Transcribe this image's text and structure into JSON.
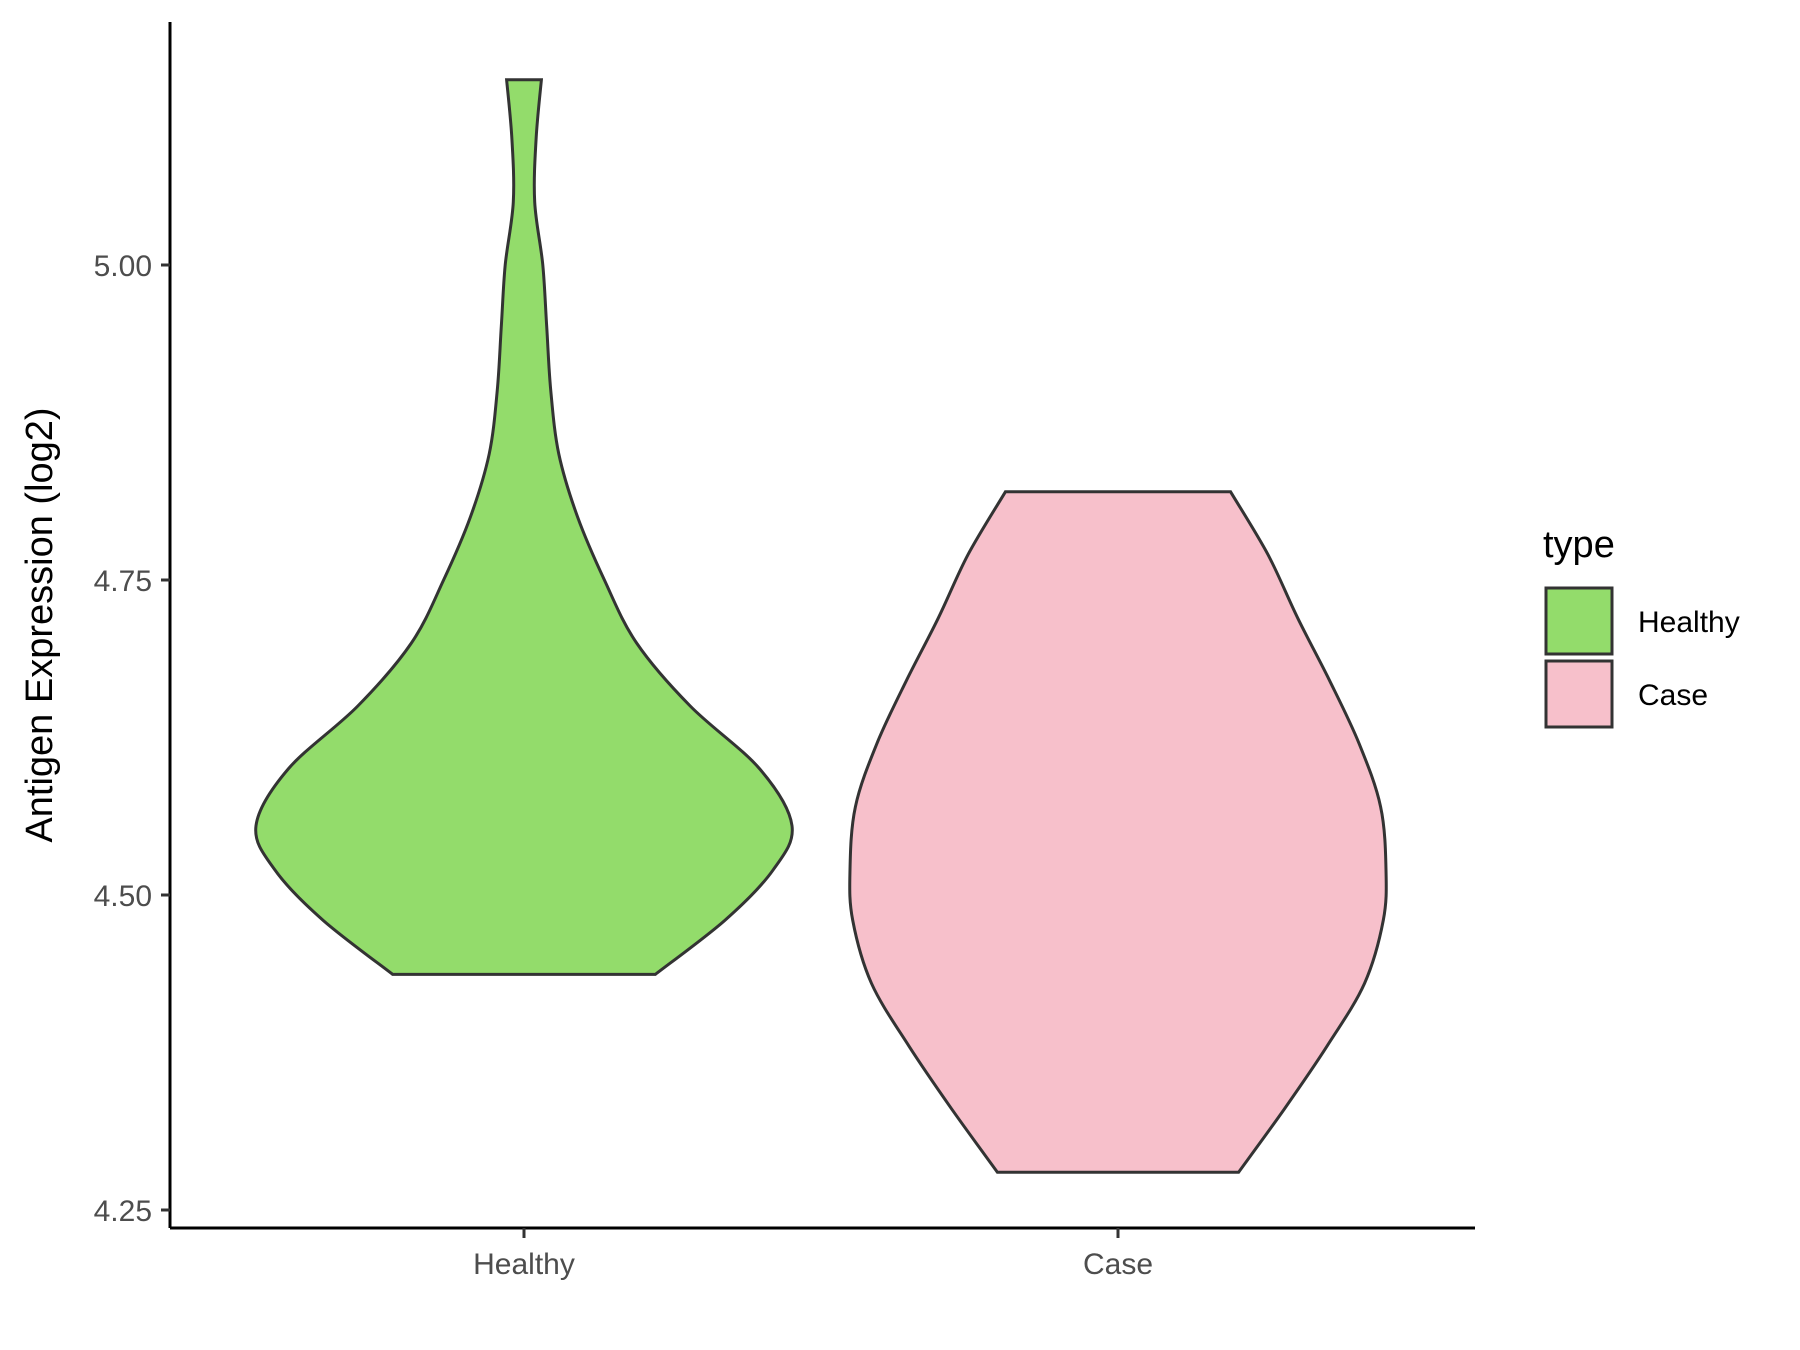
{
  "chart_data": {
    "type": "violin",
    "title": "",
    "xlabel": "",
    "ylabel": "Antigen Expression (log2)",
    "ylim": [
      4.24,
      5.19
    ],
    "yticks": [
      4.25,
      4.5,
      4.75,
      5.0
    ],
    "ytick_labels": [
      "4.25",
      "4.50",
      "4.75",
      "5.00"
    ],
    "categories": [
      "Healthy",
      "Case"
    ],
    "grid": false,
    "legend": {
      "title": "type",
      "position": "right",
      "entries": [
        {
          "label": "Healthy",
          "color": "#93dc6b"
        },
        {
          "label": "Case",
          "color": "#f7c0cb"
        }
      ]
    },
    "series": [
      {
        "category": "Healthy",
        "color": "#93dc6b",
        "min": 4.437,
        "max": 5.147,
        "density_profile": [
          [
            4.437,
            0.49
          ],
          [
            4.48,
            0.75
          ],
          [
            4.52,
            0.93
          ],
          [
            4.555,
            1.0
          ],
          [
            4.6,
            0.88
          ],
          [
            4.65,
            0.62
          ],
          [
            4.7,
            0.42
          ],
          [
            4.75,
            0.3
          ],
          [
            4.8,
            0.2
          ],
          [
            4.85,
            0.13
          ],
          [
            4.9,
            0.1
          ],
          [
            4.95,
            0.085
          ],
          [
            5.0,
            0.07
          ],
          [
            5.05,
            0.04
          ],
          [
            5.1,
            0.045
          ],
          [
            5.147,
            0.065
          ]
        ]
      },
      {
        "category": "Case",
        "color": "#f7c0cb",
        "min": 4.28,
        "max": 4.82,
        "density_profile": [
          [
            4.28,
            0.45
          ],
          [
            4.33,
            0.62
          ],
          [
            4.38,
            0.78
          ],
          [
            4.43,
            0.92
          ],
          [
            4.48,
            0.99
          ],
          [
            4.52,
            1.0
          ],
          [
            4.57,
            0.98
          ],
          [
            4.62,
            0.9
          ],
          [
            4.67,
            0.79
          ],
          [
            4.72,
            0.67
          ],
          [
            4.77,
            0.56
          ],
          [
            4.82,
            0.42
          ]
        ]
      }
    ]
  }
}
